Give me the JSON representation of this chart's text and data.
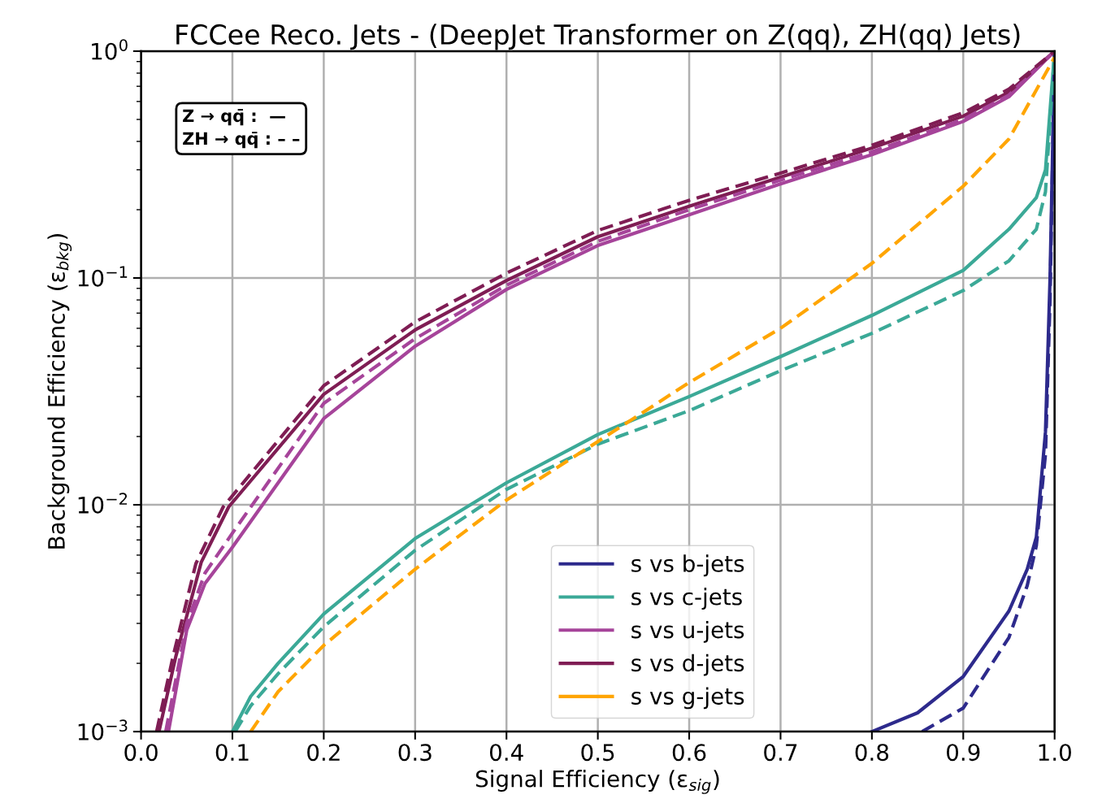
{
  "chart_data": {
    "type": "line",
    "title": "FCCee Reco. Jets - (DeepJet Transformer on Z(qq), ZH(qq) Jets)",
    "xlabel": "Signal Efficiency (ε$_{sig}$)",
    "ylabel": "Background Efficiency (ε$_{bkg}$)",
    "annotations": [
      "Z → qq̄ :  —",
      "ZH → qq̄ : – –"
    ],
    "log": "y",
    "grid": true,
    "legend": "bottom",
    "xlim": [
      0.0,
      1.0
    ],
    "xticks": [
      {
        "value": 0.0,
        "label": "0.0"
      },
      {
        "value": 0.1,
        "label": "0.1"
      },
      {
        "value": 0.2,
        "label": "0.2"
      },
      {
        "value": 0.3,
        "label": "0.3"
      },
      {
        "value": 0.4,
        "label": "0.4"
      },
      {
        "value": 0.5,
        "label": "0.5"
      },
      {
        "value": 0.6,
        "label": "0.6"
      },
      {
        "value": 0.7,
        "label": "0.7"
      },
      {
        "value": 0.8,
        "label": "0.8"
      },
      {
        "value": 0.9,
        "label": "0.9"
      },
      {
        "value": 1.0,
        "label": "1.0"
      }
    ],
    "ylim": [
      0.001,
      1
    ],
    "yticks": [
      {
        "value": 0.001,
        "label": "10$^{−3}$"
      },
      {
        "value": 0.01,
        "label": "10$^{−2}$"
      },
      {
        "value": 0.1,
        "label": "10$^{−1}$"
      },
      {
        "value": 1,
        "label": "10$^{0}$"
      }
    ],
    "series": [
      {
        "name": "s vs b-jets",
        "color": "#2d2a8c",
        "line_style": "solid",
        "x": [
          0.8,
          0.85,
          0.9,
          0.95,
          0.97,
          0.98,
          0.99,
          0.995,
          1.0
        ],
        "values": [
          0.001,
          0.00121,
          0.00175,
          0.0034,
          0.0052,
          0.0072,
          0.021,
          0.1,
          1.0
        ]
      },
      {
        "name": "s vs c-jets",
        "color": "#3ba997",
        "line_style": "solid",
        "x": [
          0.1,
          0.12,
          0.15,
          0.2,
          0.3,
          0.4,
          0.5,
          0.6,
          0.7,
          0.8,
          0.9,
          0.95,
          0.98,
          0.99,
          1.0
        ],
        "values": [
          0.001,
          0.00143,
          0.002,
          0.0033,
          0.0071,
          0.0125,
          0.0204,
          0.03,
          0.045,
          0.0684,
          0.108,
          0.164,
          0.226,
          0.3,
          1.0
        ]
      },
      {
        "name": "s vs u-jets",
        "color": "#a6449a",
        "line_style": "solid",
        "x": [
          0.03,
          0.05,
          0.07,
          0.1,
          0.2,
          0.3,
          0.4,
          0.5,
          0.6,
          0.7,
          0.8,
          0.9,
          0.95,
          1.0
        ],
        "values": [
          0.001,
          0.0028,
          0.0045,
          0.0065,
          0.024,
          0.05,
          0.089,
          0.139,
          0.19,
          0.26,
          0.35,
          0.49,
          0.63,
          1.0
        ]
      },
      {
        "name": "s vs d-jets",
        "color": "#7f1d54",
        "line_style": "solid",
        "x": [
          0.0196,
          0.038,
          0.066,
          0.096,
          0.2,
          0.3,
          0.4,
          0.5,
          0.6,
          0.7,
          0.8,
          0.9,
          0.95,
          1.0
        ],
        "values": [
          0.001,
          0.00214,
          0.0056,
          0.0098,
          0.0307,
          0.059,
          0.0975,
          0.152,
          0.207,
          0.278,
          0.374,
          0.517,
          0.66,
          1.0
        ]
      },
      {
        "color": "#2d2a8c",
        "line_style": "dashed",
        "x": [
          0.855,
          0.9,
          0.95,
          0.97,
          0.98,
          0.99,
          0.995,
          1.0
        ],
        "values": [
          0.001,
          0.00127,
          0.0026,
          0.0044,
          0.0066,
          0.0167,
          0.08,
          1.0
        ]
      },
      {
        "color": "#3ba997",
        "line_style": "dashed",
        "x": [
          0.103,
          0.12,
          0.15,
          0.2,
          0.3,
          0.4,
          0.5,
          0.6,
          0.7,
          0.8,
          0.9,
          0.95,
          0.98,
          0.99,
          1.0
        ],
        "values": [
          0.001,
          0.0013,
          0.0018,
          0.0029,
          0.0063,
          0.0117,
          0.0185,
          0.026,
          0.039,
          0.057,
          0.088,
          0.119,
          0.164,
          0.24,
          1.0
        ]
      },
      {
        "color": "#a6449a",
        "line_style": "dashed",
        "x": [
          0.027,
          0.05,
          0.07,
          0.1,
          0.2,
          0.3,
          0.4,
          0.5,
          0.6,
          0.7,
          0.8,
          0.9,
          0.95,
          1.0
        ],
        "values": [
          0.001,
          0.003,
          0.005,
          0.0075,
          0.028,
          0.054,
          0.093,
          0.145,
          0.2,
          0.27,
          0.36,
          0.5,
          0.64,
          1.0
        ]
      },
      {
        "color": "#7f1d54",
        "line_style": "dashed",
        "x": [
          0.017,
          0.035,
          0.06,
          0.09,
          0.2,
          0.3,
          0.4,
          0.5,
          0.6,
          0.7,
          0.8,
          0.9,
          0.95,
          1.0
        ],
        "values": [
          0.001,
          0.00214,
          0.0055,
          0.0098,
          0.0335,
          0.064,
          0.105,
          0.162,
          0.22,
          0.29,
          0.385,
          0.535,
          0.68,
          1.0
        ]
      },
      {
        "name": "s vs g-jets",
        "color": "#ffa500",
        "line_style": "dashed",
        "x": [
          0.12,
          0.15,
          0.2,
          0.3,
          0.4,
          0.5,
          0.6,
          0.7,
          0.8,
          0.9,
          0.95,
          1.0
        ],
        "values": [
          0.001,
          0.0015,
          0.0024,
          0.0052,
          0.0105,
          0.019,
          0.0346,
          0.06,
          0.116,
          0.254,
          0.41,
          0.94
        ]
      }
    ]
  }
}
